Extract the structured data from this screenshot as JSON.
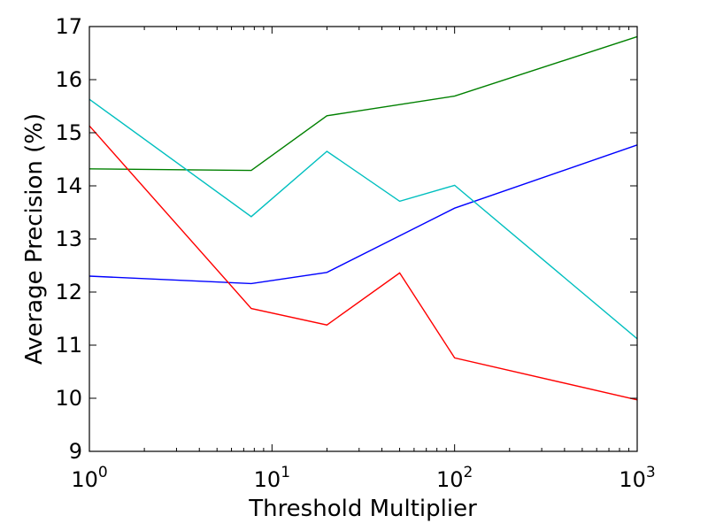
{
  "chart_data": {
    "type": "line",
    "title": "",
    "xlabel": "Threshold Multiplier",
    "ylabel": "Average Precision (%)",
    "xscale": "log",
    "xlim": [
      1,
      1000
    ],
    "ylim": [
      9,
      17
    ],
    "xticks": [
      {
        "value": 1,
        "base": "10",
        "exp": "0"
      },
      {
        "value": 10,
        "base": "10",
        "exp": "1"
      },
      {
        "value": 100,
        "base": "10",
        "exp": "2"
      },
      {
        "value": 1000,
        "base": "10",
        "exp": "3"
      }
    ],
    "yticks": [
      9,
      10,
      11,
      12,
      13,
      14,
      15,
      16,
      17
    ],
    "grid": false,
    "legend": "none",
    "series": [
      {
        "color": "#0000ff",
        "x": [
          1,
          7.7,
          20,
          100,
          1000
        ],
        "y": [
          12.3,
          12.16,
          12.37,
          13.58,
          14.77
        ]
      },
      {
        "color": "#008000",
        "x": [
          1,
          7.7,
          20,
          100,
          1000
        ],
        "y": [
          14.32,
          14.29,
          15.32,
          15.69,
          16.81
        ]
      },
      {
        "color": "#ff0000",
        "x": [
          1,
          7.7,
          20,
          50,
          100,
          1000
        ],
        "y": [
          15.13,
          11.69,
          11.38,
          12.36,
          10.76,
          9.97
        ]
      },
      {
        "color": "#00bfbf",
        "x": [
          1,
          7.7,
          20,
          50,
          100,
          1000
        ],
        "y": [
          15.63,
          13.42,
          14.65,
          13.71,
          14.01,
          11.12
        ]
      }
    ]
  }
}
